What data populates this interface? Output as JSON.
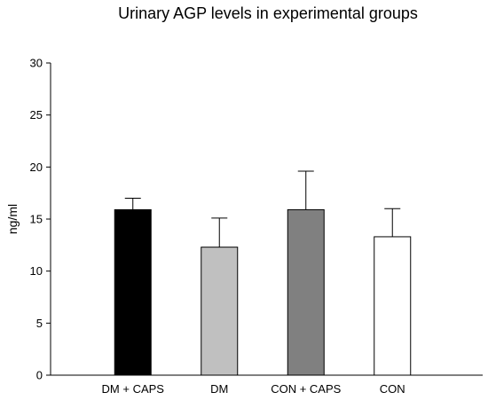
{
  "chart_data": {
    "type": "bar",
    "title": "Urinary AGP levels in experimental groups",
    "xlabel": "",
    "ylabel": "ng/ml",
    "ylim": [
      0,
      30
    ],
    "yticks": [
      0,
      5,
      10,
      15,
      20,
      25,
      30
    ],
    "categories": [
      "DM + CAPS",
      "DM",
      "CON + CAPS",
      "CON"
    ],
    "values": [
      15.9,
      12.3,
      15.9,
      13.3
    ],
    "errors": [
      1.1,
      2.8,
      3.7,
      2.7
    ],
    "bar_colors": [
      "#000000",
      "#c0c0c0",
      "#808080",
      "#ffffff"
    ],
    "grid": false,
    "legend": "none"
  }
}
